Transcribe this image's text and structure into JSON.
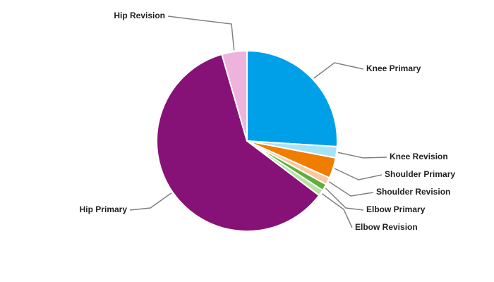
{
  "chart_data": {
    "type": "pie",
    "categories": [
      "Knee Primary",
      "Knee Revision",
      "Shoulder Primary",
      "Shoulder Revision",
      "Elbow Primary",
      "Elbow Revision",
      "Hip Primary",
      "Hip Revision"
    ],
    "values": [
      26,
      2,
      3.7,
      1.3,
      1.2,
      1.1,
      60.2,
      4.5
    ],
    "colors": [
      "#00a0e9",
      "#a6e3f7",
      "#f07d00",
      "#fbc89d",
      "#5fae3e",
      "#b5e3a3",
      "#861177",
      "#eeb3dd"
    ]
  }
}
